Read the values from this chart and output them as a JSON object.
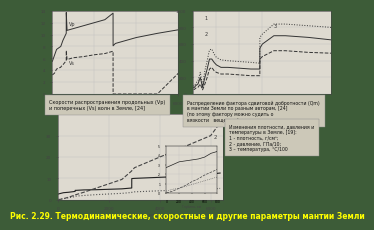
{
  "bg_color": "#3d5c38",
  "title_caption": "Рис. 2.29. Термодинамические, скоростные и другие параметры мантии Земли",
  "title_color": "#ffff00",
  "title_fontsize": 5.5,
  "panel1_label": "Скорости распространения продольных (Vp)\nи поперечных (Vs) волн в Земле, [24]",
  "panel2_label": "Распределение фактора сдвиговой добротности (Qm)\nв мантии Земли по разным авторам, [24]\n(по этому фактору можно судить о\nвязкости   вещества)",
  "panel3_label": "Изменения плотности, давления и\nтемпературы в Земле, [19]:\n1 - плотность, г/см³;\n2 - давление, ГПа/10;\n3 – температура, °С/100",
  "panel_bg": "#dedad0",
  "panel_text_color": "#111111",
  "axes_color": "#444444",
  "grid_color": "#bbbbbb",
  "line_color": "#333333"
}
